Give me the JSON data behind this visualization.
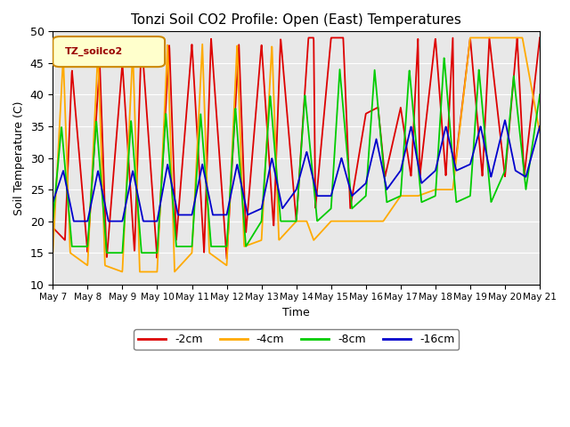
{
  "title": "Tonzi Soil CO2 Profile: Open (East) Temperatures",
  "xlabel": "Time",
  "ylabel": "Soil Temperature (C)",
  "ylim": [
    10,
    50
  ],
  "bg_color": "#e8e8e8",
  "legend_label": "TZ_soilco2",
  "series_labels": [
    "-2cm",
    "-4cm",
    "-8cm",
    "-16cm"
  ],
  "series_colors": [
    "#dd0000",
    "#ffaa00",
    "#00cc00",
    "#0000cc"
  ],
  "x_tick_labels": [
    "May 7",
    "May 8",
    "May 9",
    "May 10",
    "May 11",
    "May 12",
    "May 13",
    "May 14",
    "May 15",
    "May 16",
    "May 17",
    "May 18",
    "May 19",
    "May 20",
    "May 21"
  ],
  "cm2_t": [
    0.0,
    0.35,
    0.55,
    1.0,
    1.35,
    1.55,
    2.0,
    2.35,
    2.55,
    3.0,
    3.35,
    3.55,
    4.0,
    4.35,
    4.55,
    5.0,
    5.35,
    5.55,
    6.0,
    6.35,
    6.55,
    7.0,
    7.35,
    7.5,
    7.55,
    8.0,
    8.35,
    8.55,
    9.0,
    9.35,
    9.55,
    10.0,
    10.3,
    10.5,
    10.55,
    11.0,
    11.3,
    11.5,
    11.55,
    12.0,
    12.35,
    12.55,
    13.0,
    13.35,
    13.55,
    14.0
  ],
  "cm2_v": [
    19,
    17,
    44,
    15,
    45,
    14,
    45,
    15,
    49,
    14,
    48,
    17,
    48,
    15,
    49,
    14,
    48,
    18,
    48,
    19,
    49,
    20,
    49,
    49,
    22,
    49,
    49,
    22,
    37,
    38,
    27,
    38,
    27,
    49,
    27,
    49,
    27,
    49,
    28,
    49,
    27,
    49,
    27,
    49,
    27,
    49
  ],
  "cm4_t": [
    0.0,
    0.3,
    0.5,
    1.0,
    1.3,
    1.5,
    2.0,
    2.3,
    2.5,
    3.0,
    3.3,
    3.5,
    4.0,
    4.3,
    4.5,
    5.0,
    5.3,
    5.5,
    6.0,
    6.3,
    6.5,
    7.0,
    7.3,
    7.5,
    8.0,
    8.3,
    8.5,
    9.0,
    9.5,
    10.0,
    10.5,
    11.0,
    11.5,
    12.0,
    12.5,
    13.0,
    13.5,
    14.0
  ],
  "cm4_v": [
    15,
    46,
    15,
    13,
    47,
    13,
    12,
    47,
    12,
    12,
    48,
    12,
    15,
    48,
    15,
    13,
    48,
    16,
    17,
    48,
    17,
    20,
    20,
    17,
    20,
    20,
    20,
    20,
    20,
    24,
    24,
    25,
    25,
    49,
    49,
    49,
    49,
    34
  ],
  "cm8_t": [
    0.0,
    0.25,
    0.55,
    1.0,
    1.25,
    1.55,
    2.0,
    2.25,
    2.55,
    3.0,
    3.25,
    3.55,
    4.0,
    4.25,
    4.55,
    5.0,
    5.25,
    5.55,
    6.0,
    6.25,
    6.55,
    7.0,
    7.25,
    7.6,
    8.0,
    8.25,
    8.6,
    9.0,
    9.25,
    9.6,
    10.0,
    10.25,
    10.6,
    11.0,
    11.25,
    11.6,
    12.0,
    12.25,
    12.6,
    13.0,
    13.25,
    13.6,
    14.0
  ],
  "cm8_v": [
    20,
    35,
    16,
    16,
    36,
    15,
    15,
    36,
    15,
    15,
    37,
    16,
    16,
    37,
    16,
    16,
    38,
    16,
    20,
    40,
    20,
    20,
    40,
    20,
    22,
    44,
    22,
    24,
    44,
    23,
    24,
    44,
    23,
    24,
    46,
    23,
    24,
    44,
    23,
    28,
    43,
    25,
    40
  ],
  "cm16_t": [
    0.0,
    0.3,
    0.6,
    1.0,
    1.3,
    1.6,
    2.0,
    2.3,
    2.6,
    3.0,
    3.3,
    3.6,
    4.0,
    4.3,
    4.6,
    5.0,
    5.3,
    5.6,
    6.0,
    6.3,
    6.6,
    7.0,
    7.3,
    7.6,
    8.0,
    8.3,
    8.6,
    9.0,
    9.3,
    9.6,
    10.0,
    10.3,
    10.6,
    11.0,
    11.3,
    11.6,
    12.0,
    12.3,
    12.6,
    13.0,
    13.3,
    13.6,
    14.0
  ],
  "cm16_v": [
    23,
    28,
    20,
    20,
    28,
    20,
    20,
    28,
    20,
    20,
    29,
    21,
    21,
    29,
    21,
    21,
    29,
    21,
    22,
    30,
    22,
    25,
    31,
    24,
    24,
    30,
    24,
    26,
    33,
    25,
    28,
    35,
    26,
    28,
    35,
    28,
    29,
    35,
    27,
    36,
    28,
    27,
    35
  ]
}
